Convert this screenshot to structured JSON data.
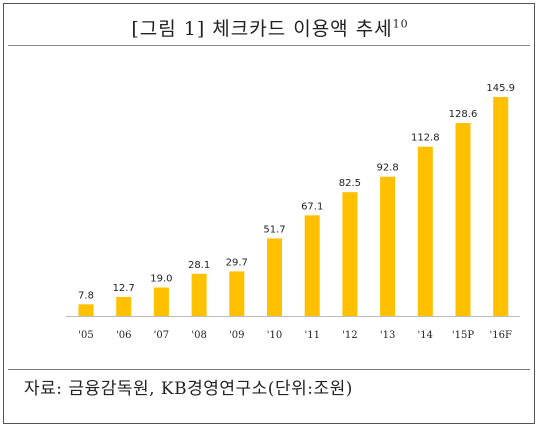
{
  "header": {
    "title": "[그림 1] 체크카드 이용액 추세",
    "title_sup": "10"
  },
  "footer": {
    "source": "자료: 금융감독원, KB경영연구소(단위:조원)"
  },
  "colors": {
    "bar": "#FFC000",
    "baseline": "#BBBBBB"
  },
  "chart_data": {
    "type": "bar",
    "title": "[그림 1] 체크카드 이용액 추세",
    "categories": [
      "'05",
      "'06",
      "'07",
      "'08",
      "'09",
      "'10",
      "'11",
      "'12",
      "'13",
      "'14",
      "'15P",
      "'16F"
    ],
    "values": [
      7.8,
      12.7,
      19.0,
      28.1,
      29.7,
      51.7,
      67.1,
      82.5,
      92.8,
      112.8,
      128.6,
      145.9
    ],
    "value_labels": [
      "7.8",
      "12.7",
      "19.0",
      "28.1",
      "29.7",
      "51.7",
      "67.1",
      "82.5",
      "92.8",
      "112.8",
      "128.6",
      "145.9"
    ],
    "ylim": [
      0,
      145.9
    ],
    "xlabel": "",
    "ylabel": "",
    "grid": false,
    "legend": "none",
    "data_labels": true
  }
}
